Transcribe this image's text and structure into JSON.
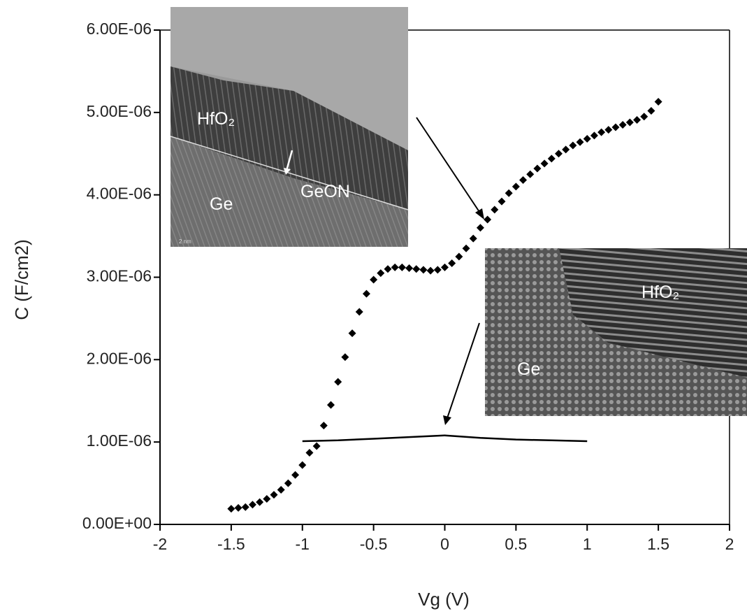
{
  "chart_data": {
    "type": "scatter",
    "xlabel": "Vg (V)",
    "ylabel": "C (F/cm2)",
    "xlim": [
      -2,
      2
    ],
    "xticks": [
      -2,
      -1.5,
      -1,
      -0.5,
      0,
      0.5,
      1,
      1.5,
      2
    ],
    "ylim": [
      0,
      6e-06
    ],
    "yticks": [
      {
        "value": 0,
        "label": "0.00E+00"
      },
      {
        "value": 1e-06,
        "label": "1.00E-06"
      },
      {
        "value": 2e-06,
        "label": "2.00E-06"
      },
      {
        "value": 3e-06,
        "label": "3.00E-06"
      },
      {
        "value": 4e-06,
        "label": "4.00E-06"
      },
      {
        "value": 5e-06,
        "label": "5.00E-06"
      },
      {
        "value": 6e-06,
        "label": "6.00E-06"
      }
    ],
    "series": [
      {
        "color": "#000000",
        "style": "markers",
        "x": [
          -1.5,
          -1.45,
          -1.4,
          -1.35,
          -1.3,
          -1.25,
          -1.2,
          -1.15,
          -1.1,
          -1.05,
          -1,
          -0.95,
          -0.9,
          -0.85,
          -0.8,
          -0.75,
          -0.7,
          -0.65,
          -0.6,
          -0.55,
          -0.5,
          -0.45,
          -0.4,
          -0.35,
          -0.3,
          -0.25,
          -0.2,
          -0.15,
          -0.1,
          -0.05,
          0,
          0.05,
          0.1,
          0.15,
          0.2,
          0.25,
          0.3,
          0.35,
          0.4,
          0.45,
          0.5,
          0.55,
          0.6,
          0.65,
          0.7,
          0.75,
          0.8,
          0.85,
          0.9,
          0.95,
          1,
          1.05,
          1.1,
          1.15,
          1.2,
          1.25,
          1.3,
          1.35,
          1.4,
          1.45,
          1.5
        ],
        "values": [
          1.9e-07,
          2e-07,
          2.1e-07,
          2.4e-07,
          2.7e-07,
          3.1e-07,
          3.6e-07,
          4.2e-07,
          5e-07,
          6e-07,
          7.2e-07,
          8.7e-07,
          9.5e-07,
          1.2e-06,
          1.45e-06,
          1.73e-06,
          2.03e-06,
          2.32e-06,
          2.58e-06,
          2.8e-06,
          2.97e-06,
          3.05e-06,
          3.1e-06,
          3.12e-06,
          3.12e-06,
          3.11e-06,
          3.1e-06,
          3.09e-06,
          3.08e-06,
          3.09e-06,
          3.12e-06,
          3.17e-06,
          3.25e-06,
          3.35e-06,
          3.47e-06,
          3.6e-06,
          3.7e-06,
          3.82e-06,
          3.92e-06,
          4.02e-06,
          4.1e-06,
          4.18e-06,
          4.25e-06,
          4.32e-06,
          4.38e-06,
          4.44e-06,
          4.5e-06,
          4.55e-06,
          4.6e-06,
          4.64e-06,
          4.68e-06,
          4.72e-06,
          4.76e-06,
          4.79e-06,
          4.82e-06,
          4.85e-06,
          4.88e-06,
          4.91e-06,
          4.95e-06,
          5.02e-06,
          5.13e-06
        ]
      },
      {
        "color": "#000000",
        "style": "line",
        "x": [
          -1,
          -0.75,
          -0.5,
          -0.25,
          0,
          0.25,
          0.5,
          0.75,
          1
        ],
        "values": [
          1.01e-06,
          1.02e-06,
          1.04e-06,
          1.06e-06,
          1.08e-06,
          1.05e-06,
          1.03e-06,
          1.02e-06,
          1.01e-06
        ]
      }
    ],
    "annotations": [
      "HfO₂",
      "GeON",
      "Ge",
      "2 nm",
      "HfO₂",
      "Ge"
    ]
  }
}
